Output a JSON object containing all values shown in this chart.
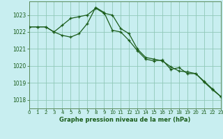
{
  "title": "Graphe pression niveau de la mer (hPa)",
  "background_color": "#c8eef0",
  "plot_background": "#c8eef0",
  "grid_color": "#90c8b8",
  "line_color": "#1a5c1a",
  "border_color": "#5a8a5a",
  "xlim": [
    0,
    23
  ],
  "ylim": [
    1017.5,
    1023.8
  ],
  "yticks": [
    1018,
    1019,
    1020,
    1021,
    1022,
    1023
  ],
  "xticks": [
    0,
    1,
    2,
    3,
    4,
    5,
    6,
    7,
    8,
    9,
    10,
    11,
    12,
    13,
    14,
    15,
    16,
    17,
    18,
    19,
    20,
    21,
    22,
    23
  ],
  "series1_x": [
    0,
    1,
    2,
    3,
    4,
    5,
    6,
    7,
    8,
    9,
    10,
    11,
    12,
    13,
    14,
    15,
    16,
    17,
    18,
    19,
    20,
    21,
    22,
    23
  ],
  "series1_y": [
    1022.3,
    1022.3,
    1022.3,
    1022.0,
    1022.4,
    1022.8,
    1022.9,
    1023.0,
    1023.4,
    1023.1,
    1023.0,
    1022.2,
    1021.9,
    1021.0,
    1020.5,
    1020.4,
    1020.3,
    1019.95,
    1019.7,
    1019.65,
    1019.55,
    1019.1,
    1018.65,
    1018.2
  ],
  "series2_x": [
    0,
    1,
    2,
    3,
    4,
    5,
    6,
    7,
    8,
    9,
    10,
    11,
    12,
    13,
    14,
    15,
    16,
    17,
    18,
    19,
    20,
    21,
    22,
    23
  ],
  "series2_y": [
    1022.3,
    1022.3,
    1022.3,
    1022.0,
    1021.8,
    1021.7,
    1021.9,
    1022.5,
    1023.45,
    1023.15,
    1022.1,
    1022.0,
    1021.5,
    1020.9,
    1020.4,
    1020.3,
    1020.35,
    1019.8,
    1019.9,
    1019.55,
    1019.55,
    1019.05,
    1018.6,
    1018.2
  ],
  "xlabel_fontsize": 6.0,
  "tick_fontsize": 5.0,
  "ylabel_fontsize": 5.5
}
